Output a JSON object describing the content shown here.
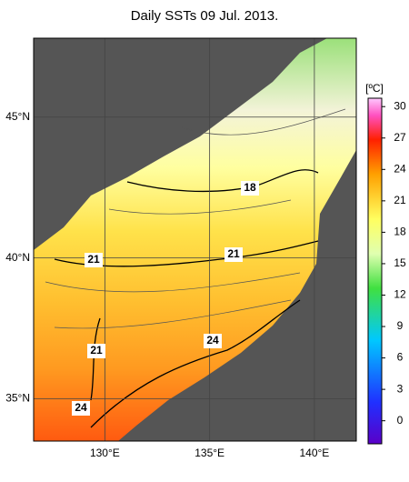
{
  "map": {
    "title": "Daily SSTs 09 Jul. 2013.",
    "xlim": [
      126.6,
      142
    ],
    "ylim": [
      33.5,
      47.8
    ],
    "lon_ticks": [
      {
        "value": 130,
        "label": "130°E"
      },
      {
        "value": 135,
        "label": "135°E"
      },
      {
        "value": 140,
        "label": "140°E"
      }
    ],
    "lat_ticks": [
      {
        "value": 35,
        "label": "35°N"
      },
      {
        "value": 40,
        "label": "40°N"
      },
      {
        "value": 45,
        "label": "45°N"
      }
    ],
    "colorbar": {
      "unit": "[ºC]",
      "clim": [
        -2.2,
        30.8
      ],
      "ticks": [
        0,
        3,
        6,
        9,
        12,
        15,
        18,
        21,
        24,
        27,
        30
      ]
    },
    "contour_labels": [
      "18",
      "21",
      "21",
      "24",
      "21",
      "24"
    ]
  }
}
